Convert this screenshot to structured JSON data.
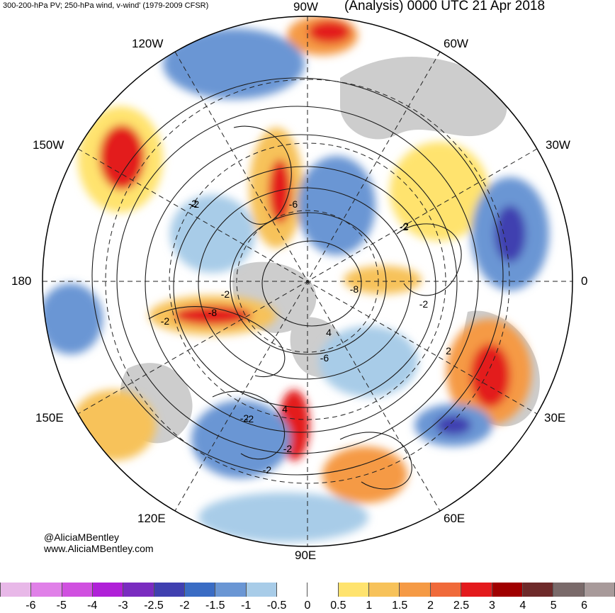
{
  "header": {
    "left": "300-200-hPa PV; 250-hPa wind, v-wind' (1979-2009 CFSR)",
    "right": "(Analysis) 0000 UTC 21 Apr 2018"
  },
  "longitude_labels": {
    "lon_90w": "90W",
    "lon_60w": "60W",
    "lon_120w": "120W",
    "lon_150w": "150W",
    "lon_30w": "30W",
    "lon_180": "180",
    "lon_0": "0",
    "lon_150e": "150E",
    "lon_30e": "30E",
    "lon_120e": "120E",
    "lon_60e": "60E",
    "lon_90e": "90E"
  },
  "credits": {
    "handle": "@AliciaMBentley",
    "website": "www.AliciaMBentley.com"
  },
  "contour_labels": [
    "-2",
    "-6",
    "-2",
    "-8",
    "-2",
    "-8",
    "-2",
    "4",
    "-6",
    "-2",
    "-2",
    "4",
    "-2",
    "-2",
    "2",
    "2",
    "-2",
    "-2"
  ],
  "colorbar": {
    "colors": [
      "#e8b8e8",
      "#e080e8",
      "#d050e0",
      "#b020d8",
      "#7a2cc0",
      "#4040b0",
      "#3a6cc4",
      "#6a96d4",
      "#a8cce8",
      "#ffffff",
      "#ffffff",
      "#ffe36e",
      "#f7c25a",
      "#f59a45",
      "#f06a3a",
      "#e31a1c",
      "#a00000",
      "#6e2a2a",
      "#7a6a6a",
      "#a89a9a"
    ],
    "ticks": [
      "-6",
      "-5",
      "-4",
      "-3",
      "-2.5",
      "-2",
      "-1.5",
      "-1",
      "-0.5",
      "0",
      "0.5",
      "1",
      "1.5",
      "2",
      "2.5",
      "3",
      "4",
      "5",
      "6"
    ],
    "neutral_color": "#ffffff",
    "land_color": "#c8c8c8"
  }
}
